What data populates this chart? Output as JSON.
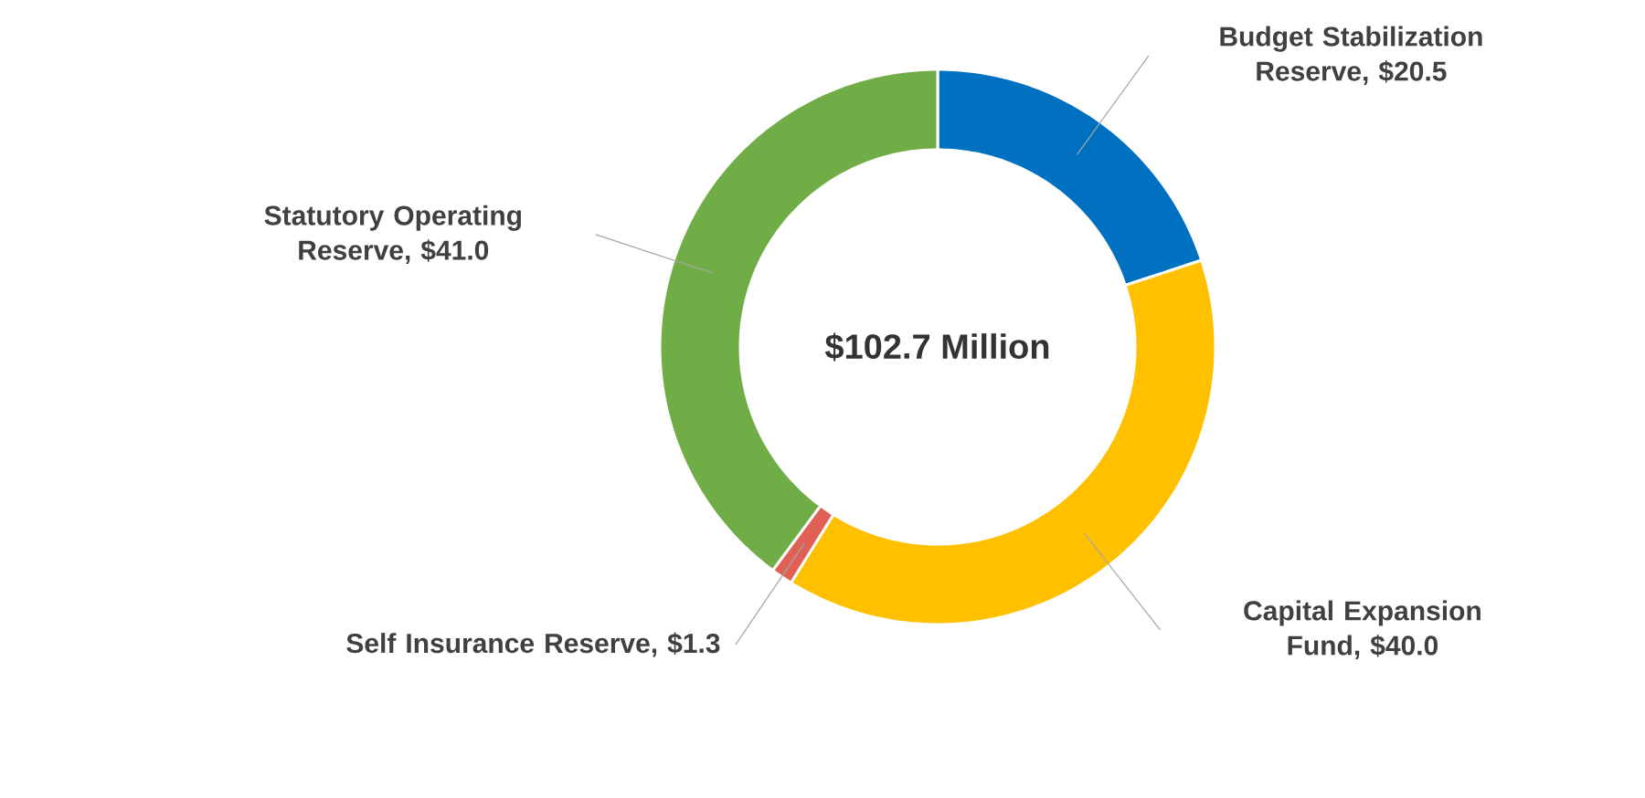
{
  "chart_data": {
    "type": "donut",
    "categories": [
      "Budget Stabilization Reserve, $20.5",
      "Capital Expansion Fund, $40.0",
      "Self Insurance Reserve, $1.3",
      "Statutory Operating Reserve, $41.0"
    ],
    "values": [
      20.5,
      40.0,
      1.3,
      41.0
    ],
    "colors": [
      "#0070c0",
      "#ffc000",
      "#e06055",
      "#70ad47"
    ],
    "annotations": [
      "$102.7 Million"
    ]
  }
}
